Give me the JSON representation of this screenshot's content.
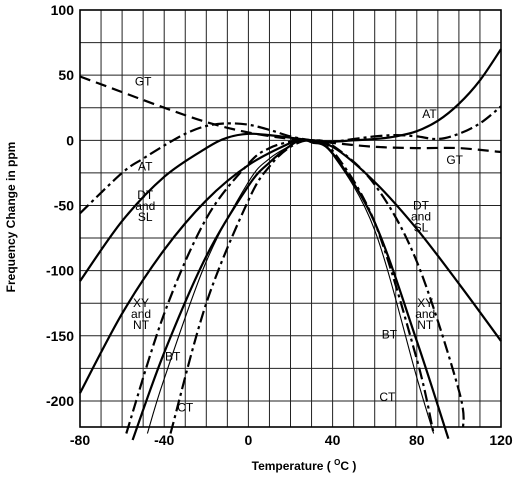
{
  "chart_data": {
    "type": "line",
    "xlabel": "Temperature",
    "xlabel_unit_sup": "O",
    "xlabel_unit_tail": "C",
    "xlabel_open": "(",
    "xlabel_close": ")",
    "ylabel": "Frequency Change in ppm",
    "xlim": [
      -80,
      120
    ],
    "ylim": [
      -220,
      100
    ],
    "x_ticks": [
      -80,
      -40,
      0,
      40,
      80,
      120
    ],
    "x_tick_labels": [
      "-80",
      "-40",
      "0",
      "40",
      "80",
      "120"
    ],
    "y_ticks": [
      100,
      50,
      0,
      -50,
      -100,
      -150,
      -200
    ],
    "y_tick_labels": [
      "100",
      "50",
      "0",
      "-50",
      "-100",
      "-150",
      "-200"
    ],
    "grid": true,
    "series": [
      {
        "name": "GT",
        "style": "dashed",
        "x": [
          -80,
          -60,
          -40,
          -20,
          0,
          20,
          30,
          40,
          60,
          80,
          100,
          120
        ],
        "y": [
          49,
          37,
          25,
          14,
          6,
          1,
          0,
          -2,
          -5,
          -6,
          -6,
          -9
        ]
      },
      {
        "name": "AT",
        "style": "solid",
        "x": [
          -80,
          -60,
          -40,
          -20,
          -10,
          0,
          10,
          20,
          30,
          40,
          50,
          60,
          70,
          80,
          90,
          100,
          110,
          120
        ],
        "y": [
          -108,
          -62,
          -28,
          -6,
          2,
          5,
          4,
          2,
          0,
          -1,
          0,
          1,
          3,
          7,
          15,
          28,
          46,
          70
        ]
      },
      {
        "name": "AT",
        "style": "dash-dot",
        "x": [
          -80,
          -60,
          -50,
          -40,
          -30,
          -20,
          -10,
          0,
          10,
          20,
          30,
          40,
          50,
          60,
          70,
          80,
          90,
          100,
          110,
          120
        ],
        "y": [
          -56,
          -25,
          -14,
          -4,
          5,
          11,
          13,
          12,
          8,
          3,
          0,
          -1,
          1,
          3,
          4,
          3,
          1,
          5,
          13,
          26
        ]
      },
      {
        "name": "DT and SL",
        "style": "solid",
        "x": [
          -80,
          -60,
          -40,
          -20,
          0,
          20,
          25,
          40,
          60,
          80,
          100,
          120
        ],
        "y": [
          -194,
          -133,
          -84,
          -46,
          -19,
          -2,
          0,
          -5,
          -32,
          -68,
          -110,
          -154
        ]
      },
      {
        "name": "XY and NT",
        "style": "solid",
        "x": [
          -55,
          -40,
          -20,
          0,
          10,
          20,
          25,
          30,
          40,
          60,
          80,
          95
        ],
        "y": [
          -230,
          -163,
          -89,
          -35,
          -17,
          -4,
          0,
          -1,
          -10,
          -63,
          -154,
          -229
        ]
      },
      {
        "name": "BT",
        "style": "thin",
        "x": [
          -48,
          -40,
          -20,
          0,
          10,
          20,
          25,
          30,
          40,
          60,
          80,
          88
        ],
        "y": [
          -225,
          -183,
          -93,
          -32,
          -14,
          -4,
          0,
          -2,
          -11,
          -69,
          -182,
          -225
        ]
      },
      {
        "name": "CT",
        "style": "dash-dot",
        "x": [
          -58,
          -40,
          -20,
          0,
          10,
          20,
          25,
          30,
          40,
          60,
          80,
          100,
          102
        ],
        "y": [
          -225,
          -133,
          -60,
          -18,
          -6,
          -1,
          0,
          0,
          -4,
          -34,
          -93,
          -192,
          -222
        ]
      },
      {
        "name": "CT",
        "style": "dash-dot",
        "x": [
          -37,
          -20,
          0,
          10,
          20,
          30,
          40,
          60,
          80,
          88
        ],
        "y": [
          -225,
          -125,
          -46,
          -20,
          -5,
          0,
          -8,
          -63,
          -168,
          -225
        ]
      }
    ],
    "annotations": [
      {
        "lines": [
          "GT"
        ],
        "x": -50,
        "y": 42
      },
      {
        "lines": [
          "AT"
        ],
        "x": 86,
        "y": 17
      },
      {
        "lines": [
          "GT"
        ],
        "x": 98,
        "y": -18
      },
      {
        "lines": [
          "AT"
        ],
        "x": -49,
        "y": -23
      },
      {
        "lines": [
          "DT",
          "and",
          "SL"
        ],
        "x": -49,
        "y": -45
      },
      {
        "lines": [
          "DT",
          "and",
          "SL"
        ],
        "x": 82,
        "y": -53
      },
      {
        "lines": [
          "XY",
          "and",
          "NT"
        ],
        "x": -51,
        "y": -128
      },
      {
        "lines": [
          "XY",
          "and",
          "NT"
        ],
        "x": 84,
        "y": -128
      },
      {
        "lines": [
          "BT"
        ],
        "x": -36,
        "y": -169
      },
      {
        "lines": [
          "BT"
        ],
        "x": 67,
        "y": -152
      },
      {
        "lines": [
          "CT"
        ],
        "x": -30,
        "y": -208
      },
      {
        "lines": [
          "CT"
        ],
        "x": 66,
        "y": -200
      }
    ]
  }
}
